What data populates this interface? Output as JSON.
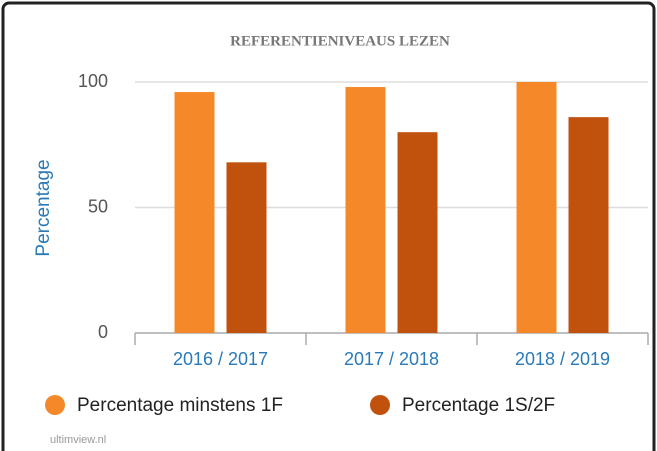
{
  "chart_data": {
    "type": "bar",
    "title": "REFERENTIENIVEAUS LEZEN",
    "y_label": "Percentage",
    "categories": [
      "2016 / 2017",
      "2017 / 2018",
      "2018 / 2019"
    ],
    "series": [
      {
        "name": "Percentage minstens 1F",
        "color": "#f5892a",
        "values": [
          96,
          98,
          100
        ]
      },
      {
        "name": "Percentage 1S/2F",
        "color": "#c0520e",
        "values": [
          68,
          80,
          86
        ]
      }
    ],
    "ylim": [
      0,
      100
    ],
    "yticks": [
      0,
      50,
      100
    ],
    "grid": true,
    "credit": "ultimview.nl"
  }
}
